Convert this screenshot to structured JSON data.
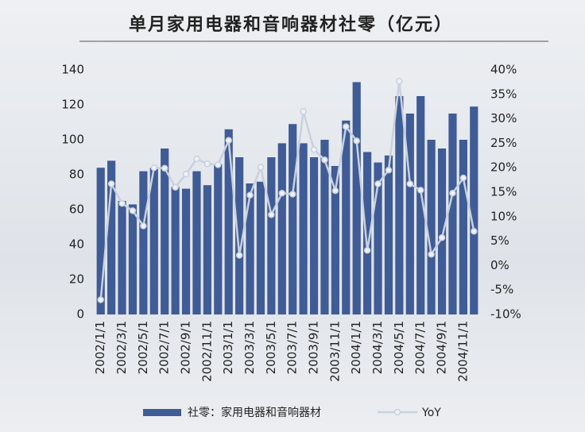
{
  "chart_data": {
    "type": "bar",
    "title": "单月家用电器和音响器材社零（亿元）",
    "categories": [
      "2002/1/1",
      null,
      "2002/3/1",
      null,
      "2002/5/1",
      null,
      "2002/7/1",
      null,
      "2002/9/1",
      null,
      "2002/11/1",
      null,
      "2003/1/1",
      null,
      "2003/3/1",
      null,
      "2003/5/1",
      null,
      "2003/7/1",
      null,
      "2003/9/1",
      null,
      "2003/11/1",
      null,
      "2004/1/1",
      null,
      "2004/3/1",
      null,
      "2004/5/1",
      null,
      "2004/7/1",
      null,
      "2004/9/1",
      null,
      "2004/11/1",
      null
    ],
    "series": [
      {
        "name": "社零：家用电器和音响器材",
        "type": "bar",
        "axis": "y",
        "color": "#3f5c96",
        "values": [
          84,
          88,
          65,
          63,
          82,
          84,
          95,
          73,
          72,
          82,
          74,
          86,
          106,
          90,
          75,
          76,
          90,
          98,
          109,
          98,
          90,
          100,
          85,
          111,
          133,
          93,
          87,
          91,
          125,
          115,
          125,
          100,
          95,
          115,
          100,
          119
        ]
      },
      {
        "name": "YoY",
        "type": "line",
        "axis": "y2",
        "color": "#c9d1de",
        "values": [
          -7,
          16.7,
          12.7,
          11.2,
          8.1,
          20,
          19.9,
          16,
          18.7,
          21.8,
          20.8,
          20.6,
          25.6,
          2.1,
          14.4,
          20.1,
          10.4,
          14.8,
          14.6,
          31.5,
          23.7,
          21.6,
          15.3,
          28.4,
          25.5,
          3.1,
          16.7,
          19.5,
          37.7,
          16.7,
          15.4,
          2.3,
          5.7,
          14.8,
          17.9,
          7
        ]
      }
    ],
    "ylim": [
      0,
      140
    ],
    "yticks": [
      0,
      20,
      40,
      60,
      80,
      100,
      120,
      140
    ],
    "y2lim": [
      -10,
      40
    ],
    "y2ticks": [
      {
        "value": -10,
        "label": "-10%"
      },
      {
        "value": -5,
        "label": "-5%"
      },
      {
        "value": 0,
        "label": "0%"
      },
      {
        "value": 5,
        "label": "5%"
      },
      {
        "value": 10,
        "label": "10%"
      },
      {
        "value": 15,
        "label": "15%"
      },
      {
        "value": 20,
        "label": "20%"
      },
      {
        "value": 25,
        "label": "25%"
      },
      {
        "value": 30,
        "label": "30%"
      },
      {
        "value": 35,
        "label": "35%"
      },
      {
        "value": 40,
        "label": "40%"
      }
    ],
    "grid": false
  }
}
